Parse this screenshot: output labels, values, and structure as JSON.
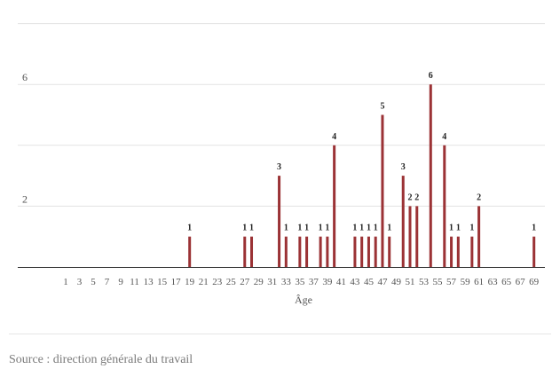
{
  "chart_data": {
    "type": "bar",
    "xlabel": "Âge",
    "ylabel": "",
    "ylim": [
      0,
      8
    ],
    "yticks": [
      2,
      6
    ],
    "grid": true,
    "bar_color": "#9b3235",
    "x": [
      19,
      27,
      28,
      32,
      33,
      35,
      36,
      38,
      39,
      40,
      43,
      44,
      45,
      46,
      47,
      48,
      50,
      51,
      52,
      54,
      56,
      57,
      58,
      60,
      61,
      69
    ],
    "values": [
      1,
      1,
      1,
      3,
      1,
      1,
      1,
      1,
      1,
      4,
      1,
      1,
      1,
      1,
      5,
      1,
      3,
      2,
      2,
      6,
      4,
      1,
      1,
      1,
      2,
      1
    ],
    "xtick_labels": [
      "1",
      "3",
      "5",
      "7",
      "9",
      "11",
      "13",
      "15",
      "17",
      "19",
      "21",
      "23",
      "25",
      "27",
      "29",
      "31",
      "33",
      "35",
      "37",
      "39",
      "41",
      "43",
      "45",
      "47",
      "49",
      "51",
      "53",
      "55",
      "57",
      "59",
      "61",
      "63",
      "65",
      "67",
      "69"
    ]
  },
  "source_text": "Source : direction générale du travail"
}
